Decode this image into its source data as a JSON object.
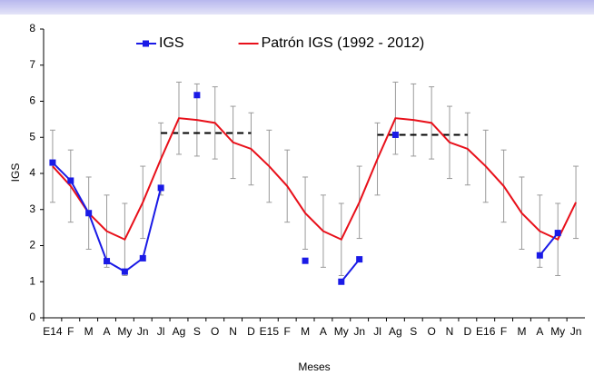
{
  "chart_data": {
    "type": "line",
    "x_label": "Meses",
    "y_label": "IGS",
    "categories": [
      "E14",
      "F",
      "M",
      "A",
      "My",
      "Jn",
      "Jl",
      "Ag",
      "S",
      "O",
      "N",
      "D",
      "E15",
      "F",
      "M",
      "A",
      "My",
      "Jn",
      "Jl",
      "Ag",
      "S",
      "O",
      "N",
      "D",
      "E16",
      "F",
      "M",
      "A",
      "My",
      "Jn"
    ],
    "series": [
      {
        "name": "IGS",
        "color": "#1a1ae6",
        "marker": "square",
        "values": [
          4.3,
          3.8,
          2.9,
          1.57,
          1.28,
          1.65,
          3.6,
          null,
          6.17,
          null,
          null,
          null,
          null,
          null,
          1.58,
          null,
          1.0,
          1.62,
          null,
          5.07,
          null,
          null,
          null,
          null,
          null,
          null,
          null,
          1.73,
          2.35,
          null
        ]
      },
      {
        "name": "Patrón IGS (1992 - 2012)",
        "color": "#e8101a",
        "values": [
          4.2,
          3.65,
          2.9,
          2.4,
          2.17,
          3.2,
          4.4,
          5.53,
          5.48,
          5.4,
          4.86,
          4.68,
          4.2,
          3.65,
          2.9,
          2.4,
          2.17,
          3.2,
          4.4,
          5.53,
          5.48,
          5.4,
          4.86,
          4.68,
          4.2,
          3.65,
          2.9,
          2.4,
          2.17,
          3.2
        ],
        "errors": [
          1,
          1,
          1,
          1,
          1,
          1,
          1,
          1,
          1,
          1,
          1,
          1,
          1,
          1,
          1,
          1,
          1,
          1,
          1,
          1,
          1,
          1,
          1,
          1,
          1,
          1,
          1,
          1,
          1,
          1
        ],
        "error_color": "#9a9a9a"
      }
    ],
    "reference_lines": [
      {
        "color": "#000000",
        "values": [
          null,
          null,
          null,
          null,
          null,
          null,
          5.12,
          5.12,
          5.12,
          5.12,
          5.12,
          5.12,
          null,
          null,
          null,
          null,
          null,
          null,
          null,
          null,
          null,
          null,
          null,
          null,
          null,
          null,
          null,
          null,
          null,
          null
        ]
      },
      {
        "color": "#000000",
        "values": [
          null,
          null,
          null,
          null,
          null,
          null,
          null,
          null,
          null,
          null,
          null,
          null,
          null,
          null,
          null,
          null,
          null,
          null,
          5.07,
          5.07,
          5.07,
          5.07,
          5.07,
          5.07,
          null,
          null,
          null,
          null,
          null,
          null
        ]
      }
    ],
    "ylim": [
      0,
      8
    ],
    "yticks": [
      0,
      1,
      2,
      3,
      4,
      5,
      6,
      7,
      8
    ],
    "grid": false,
    "legend": "top"
  }
}
